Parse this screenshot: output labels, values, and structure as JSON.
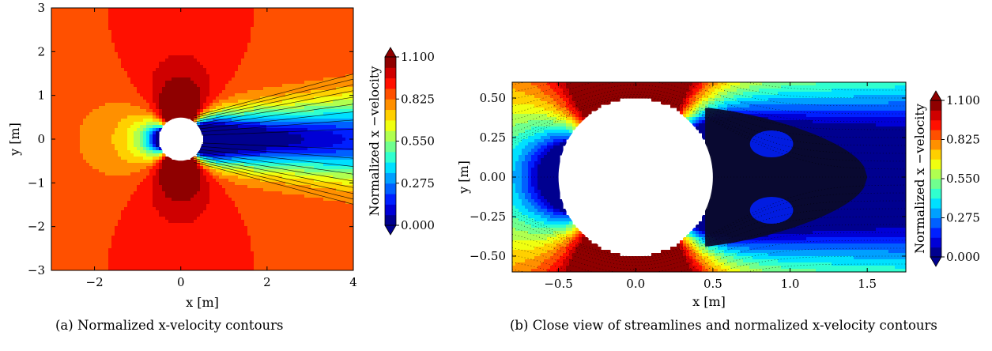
{
  "chart_data": [
    {
      "type": "heatmap",
      "panel_label": "(a)",
      "caption": "Normalized x-velocity contours",
      "xlabel": "x [m]",
      "ylabel": "y [m]",
      "xlim": [
        -3,
        4
      ],
      "ylim": [
        -3,
        3
      ],
      "xticks": [
        -2,
        0,
        2,
        4
      ],
      "xtick_labels": [
        "−2",
        "0",
        "2",
        "4"
      ],
      "yticks": [
        -3,
        -2,
        -1,
        0,
        1,
        2,
        3
      ],
      "ytick_labels": [
        "−3",
        "−2",
        "−1",
        "0",
        "1",
        "2",
        "3"
      ],
      "cylinder": {
        "center": [
          0,
          0
        ],
        "radius": 0.5
      },
      "colorbar": {
        "label": "Normalized x −velocity",
        "range": [
          0,
          1.1
        ],
        "ticks": [
          0.0,
          0.275,
          0.55,
          0.825,
          1.1
        ],
        "tick_labels": [
          "0.000",
          "0.275",
          "0.550",
          "0.825",
          "1.100"
        ],
        "extend": "both"
      },
      "contour_lines": true
    },
    {
      "type": "heatmap",
      "panel_label": "(b)",
      "caption": "Close view of streamlines and normalized x-velocity contours",
      "xlabel": "x [m]",
      "ylabel": "y [m]",
      "xlim": [
        -0.8,
        1.75
      ],
      "ylim": [
        -0.6,
        0.6
      ],
      "xticks": [
        -0.5,
        0.0,
        0.5,
        1.0,
        1.5
      ],
      "xtick_labels": [
        "−0.5",
        "0.0",
        "0.5",
        "1.0",
        "1.5"
      ],
      "yticks": [
        -0.5,
        -0.25,
        0.0,
        0.25,
        0.5
      ],
      "ytick_labels": [
        "−0.50",
        "−0.25",
        "0.00",
        "0.25",
        "0.50"
      ],
      "cylinder": {
        "center": [
          0,
          0
        ],
        "radius": 0.5
      },
      "recirculation_end_x": 1.5,
      "colorbar": {
        "label": "Normalized x −velocity",
        "range": [
          0,
          1.1
        ],
        "ticks": [
          0.0,
          0.275,
          0.55,
          0.825,
          1.1
        ],
        "tick_labels": [
          "0.000",
          "0.275",
          "0.550",
          "0.825",
          "1.100"
        ],
        "extend": "both"
      },
      "streamlines": true
    }
  ],
  "colormap": [
    "#00008f",
    "#0000d6",
    "#0020ff",
    "#0060ff",
    "#00a0ff",
    "#00e0ff",
    "#30ffcf",
    "#70ff8f",
    "#b0ff50",
    "#f0ff10",
    "#ffd000",
    "#ff9000",
    "#ff5000",
    "#ff1000",
    "#cf0000",
    "#8f0000"
  ]
}
